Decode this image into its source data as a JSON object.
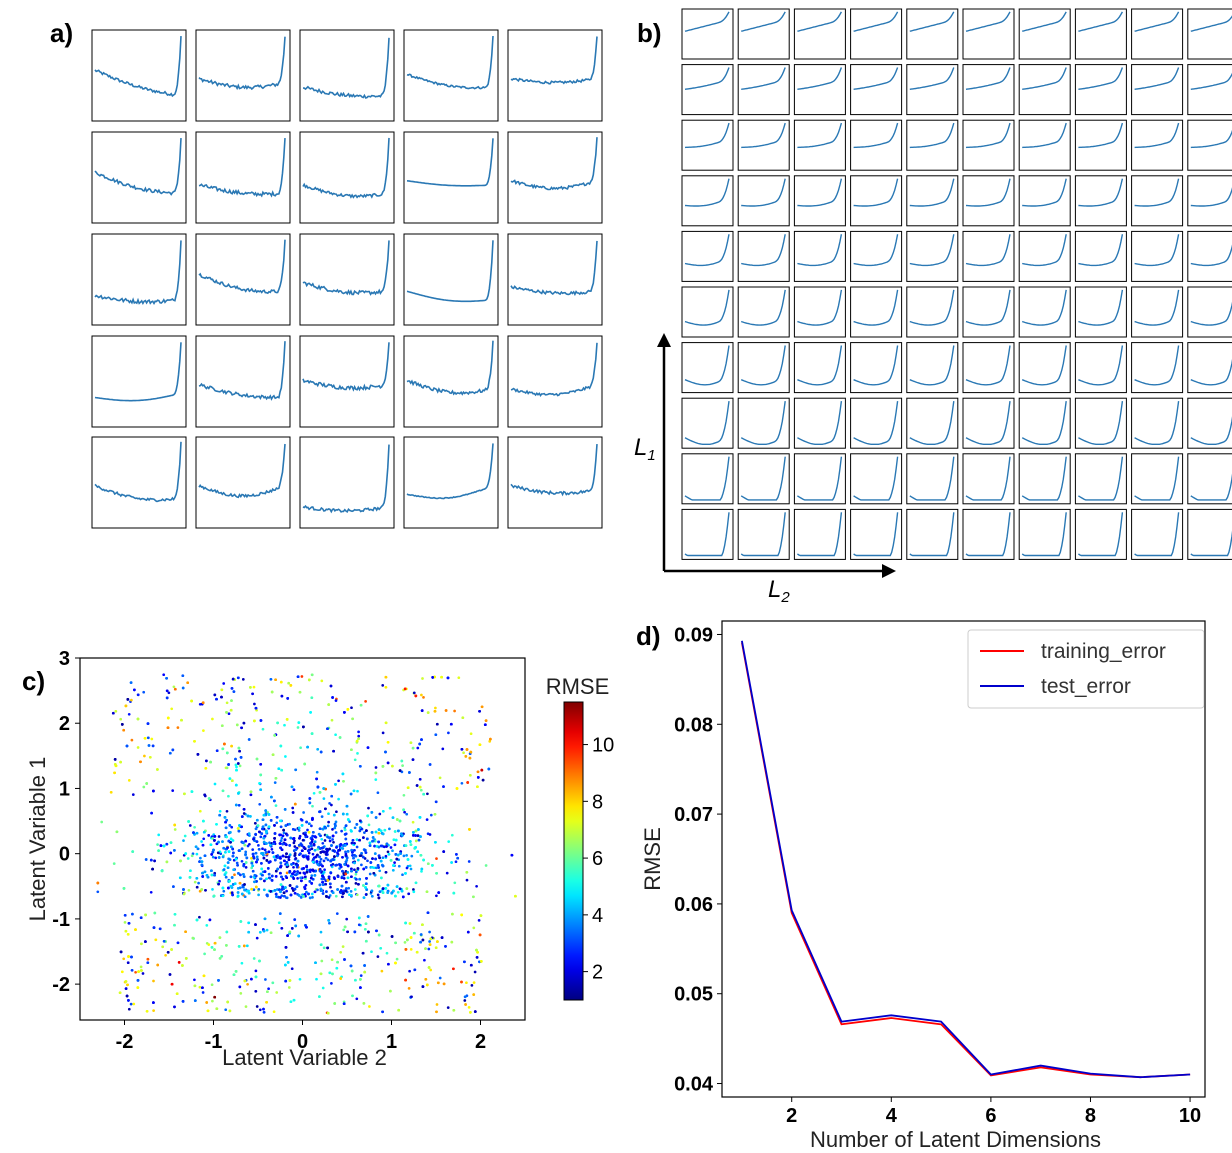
{
  "panels": {
    "a": {
      "label": "a)"
    },
    "b": {
      "label": "b)",
      "y_axis_label": "L",
      "y_axis_sub": "1",
      "x_axis_label": "L",
      "x_axis_sub": "2"
    },
    "c": {
      "label": "c)"
    },
    "d": {
      "label": "d)"
    }
  },
  "chart_data": [
    {
      "panel": "a",
      "type": "line",
      "grid_rows": 5,
      "grid_cols": 5,
      "x": [],
      "y": [],
      "note_series_shape": "25 small curves, axes without ticks"
    },
    {
      "panel": "b",
      "type": "line",
      "grid_rows": 10,
      "grid_cols": 10,
      "x": [],
      "y": []
    },
    {
      "panel": "c",
      "type": "scatter",
      "xlabel": "Latent Variable 2",
      "ylabel": "Latent Variable 1",
      "xlim": [
        -2.5,
        2.5
      ],
      "ylim": [
        -2.55,
        3.0
      ],
      "xticks": [
        -2,
        -1,
        0,
        1,
        2
      ],
      "yticks": [
        -2,
        -1,
        0,
        1,
        2,
        3
      ],
      "colorbar": {
        "title": "RMSE",
        "min": 1,
        "max": 11.5,
        "ticks": [
          2,
          4,
          6,
          8,
          10
        ],
        "colormap": "jet"
      },
      "n_points": 3600,
      "x": [],
      "y": []
    },
    {
      "panel": "d",
      "type": "line",
      "xlabel": "Number of Latent Dimensions",
      "ylabel": "RMSE",
      "xlim": [
        0.6,
        10.3
      ],
      "ylim": [
        0.0385,
        0.0915
      ],
      "xticks": [
        2,
        4,
        6,
        8,
        10
      ],
      "yticks": [
        0.04,
        0.05,
        0.06,
        0.07,
        0.08,
        0.09
      ],
      "ytick_labels": [
        "0.04",
        "0.05",
        "0.06",
        "0.07",
        "0.08",
        "0.09"
      ],
      "x": [
        1,
        2,
        3,
        4,
        5,
        6,
        7,
        8,
        9,
        10
      ],
      "series": [
        {
          "name": "training_error",
          "color": "#ff0000",
          "values": [
            0.0891,
            0.059,
            0.0466,
            0.0473,
            0.0466,
            0.0409,
            0.0418,
            0.041,
            0.0407,
            0.041
          ]
        },
        {
          "name": "test_error",
          "color": "#0000cc",
          "values": [
            0.0893,
            0.0593,
            0.0469,
            0.0476,
            0.0469,
            0.041,
            0.042,
            0.0411,
            0.0407,
            0.041
          ]
        }
      ],
      "legend_position": "top-right"
    }
  ]
}
